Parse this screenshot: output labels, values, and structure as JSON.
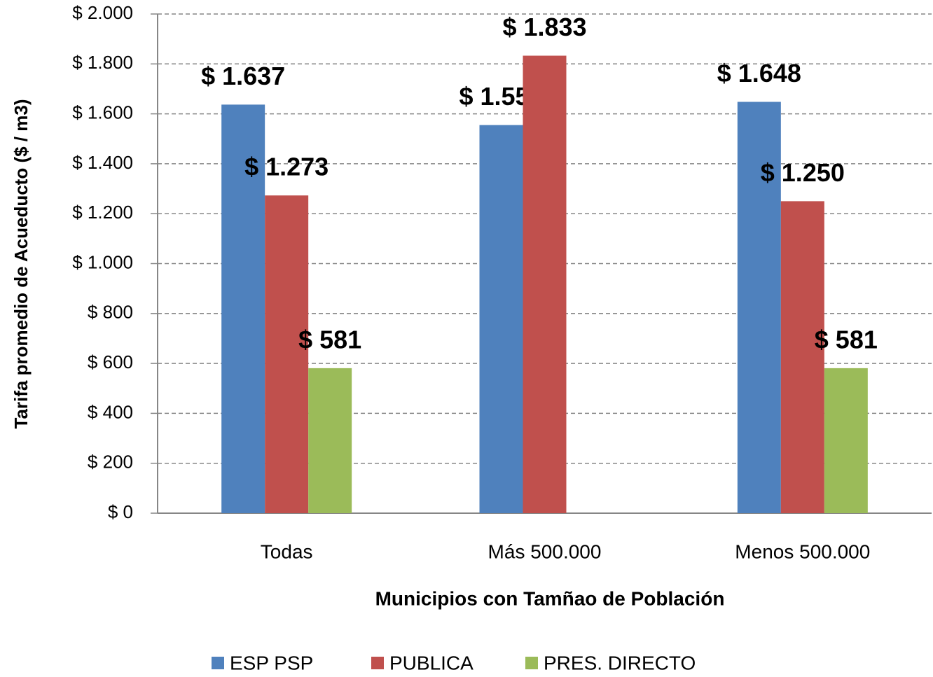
{
  "chart_data": {
    "type": "bar",
    "x_label": "Municipios con Tamñao de Población",
    "y_label": "Tarifa promedio de Acueducto ($ / m3)",
    "categories": [
      "Todas",
      "Más 500.000",
      "Menos 500.000"
    ],
    "series": [
      {
        "name": "ESP PSP",
        "color": "#4f81bd",
        "values": [
          1637,
          1555,
          1648
        ],
        "value_labels": [
          "$ 1.637",
          "$ 1.555",
          "$ 1.648"
        ]
      },
      {
        "name": "PUBLICA",
        "color": "#c0504d",
        "values": [
          1273,
          1833,
          1250
        ],
        "value_labels": [
          "$ 1.273",
          "$ 1.833",
          "$ 1.250"
        ]
      },
      {
        "name": "PRES. DIRECTO",
        "color": "#9bbb59",
        "values": [
          581,
          null,
          581
        ],
        "value_labels": [
          "$ 581",
          null,
          "$ 581"
        ]
      }
    ],
    "ylim": [
      0,
      2000
    ],
    "yticks": [
      {
        "value": 0,
        "label": "$ 0"
      },
      {
        "value": 200,
        "label": "$ 200"
      },
      {
        "value": 400,
        "label": "$ 400"
      },
      {
        "value": 600,
        "label": "$ 600"
      },
      {
        "value": 800,
        "label": "$ 800"
      },
      {
        "value": 1000,
        "label": "$ 1.000"
      },
      {
        "value": 1200,
        "label": "$ 1.200"
      },
      {
        "value": 1400,
        "label": "$ 1.400"
      },
      {
        "value": 1600,
        "label": "$ 1.600"
      },
      {
        "value": 1800,
        "label": "$ 1.800"
      },
      {
        "value": 2000,
        "label": "$ 2.000"
      }
    ],
    "grid": true,
    "legend": "bottom"
  }
}
